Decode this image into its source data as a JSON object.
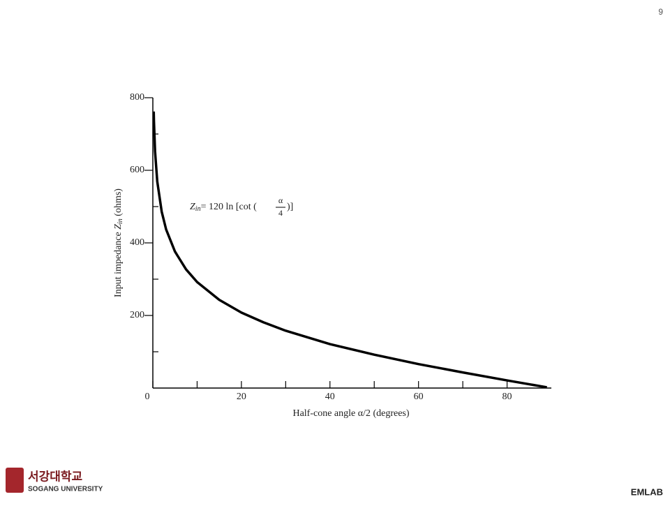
{
  "page_number": "9",
  "footer": {
    "logo_korean": "서강대학교",
    "logo_english": "SOGANG UNIVERSITY",
    "lab": "EMLAB"
  },
  "chart_data": {
    "type": "line",
    "x_label": "Half-cone angle α/2 (degrees)",
    "y_label": {
      "text": "Input impedance ",
      "var": "Z",
      "sub": "in",
      "unit": " (ohms)"
    },
    "annotation": {
      "lhs": "Z",
      "lhs_sub": "in",
      "rhs": "= 120 ln [cot (",
      "numerator": "α",
      "denominator": "4",
      "close": ")]"
    },
    "x": [
      0.2,
      0.25,
      0.5,
      1,
      2,
      3,
      5,
      7.5,
      10,
      15,
      20,
      25,
      30,
      40,
      50,
      60,
      70,
      80,
      89
    ],
    "values": [
      762,
      735,
      652,
      569,
      486,
      437,
      376,
      327,
      292,
      243,
      208,
      181,
      158,
      121,
      92,
      66,
      43,
      21,
      2
    ],
    "color": "#000000",
    "xlim": [
      0,
      90
    ],
    "ylim": [
      0,
      800
    ],
    "xticks": [
      0,
      20,
      40,
      60,
      80
    ],
    "x_minor_ticks": [
      10,
      30,
      50,
      70
    ],
    "yticks": [
      200,
      400,
      600,
      800
    ],
    "y_minor_ticks": [
      100,
      300,
      500,
      700
    ]
  }
}
